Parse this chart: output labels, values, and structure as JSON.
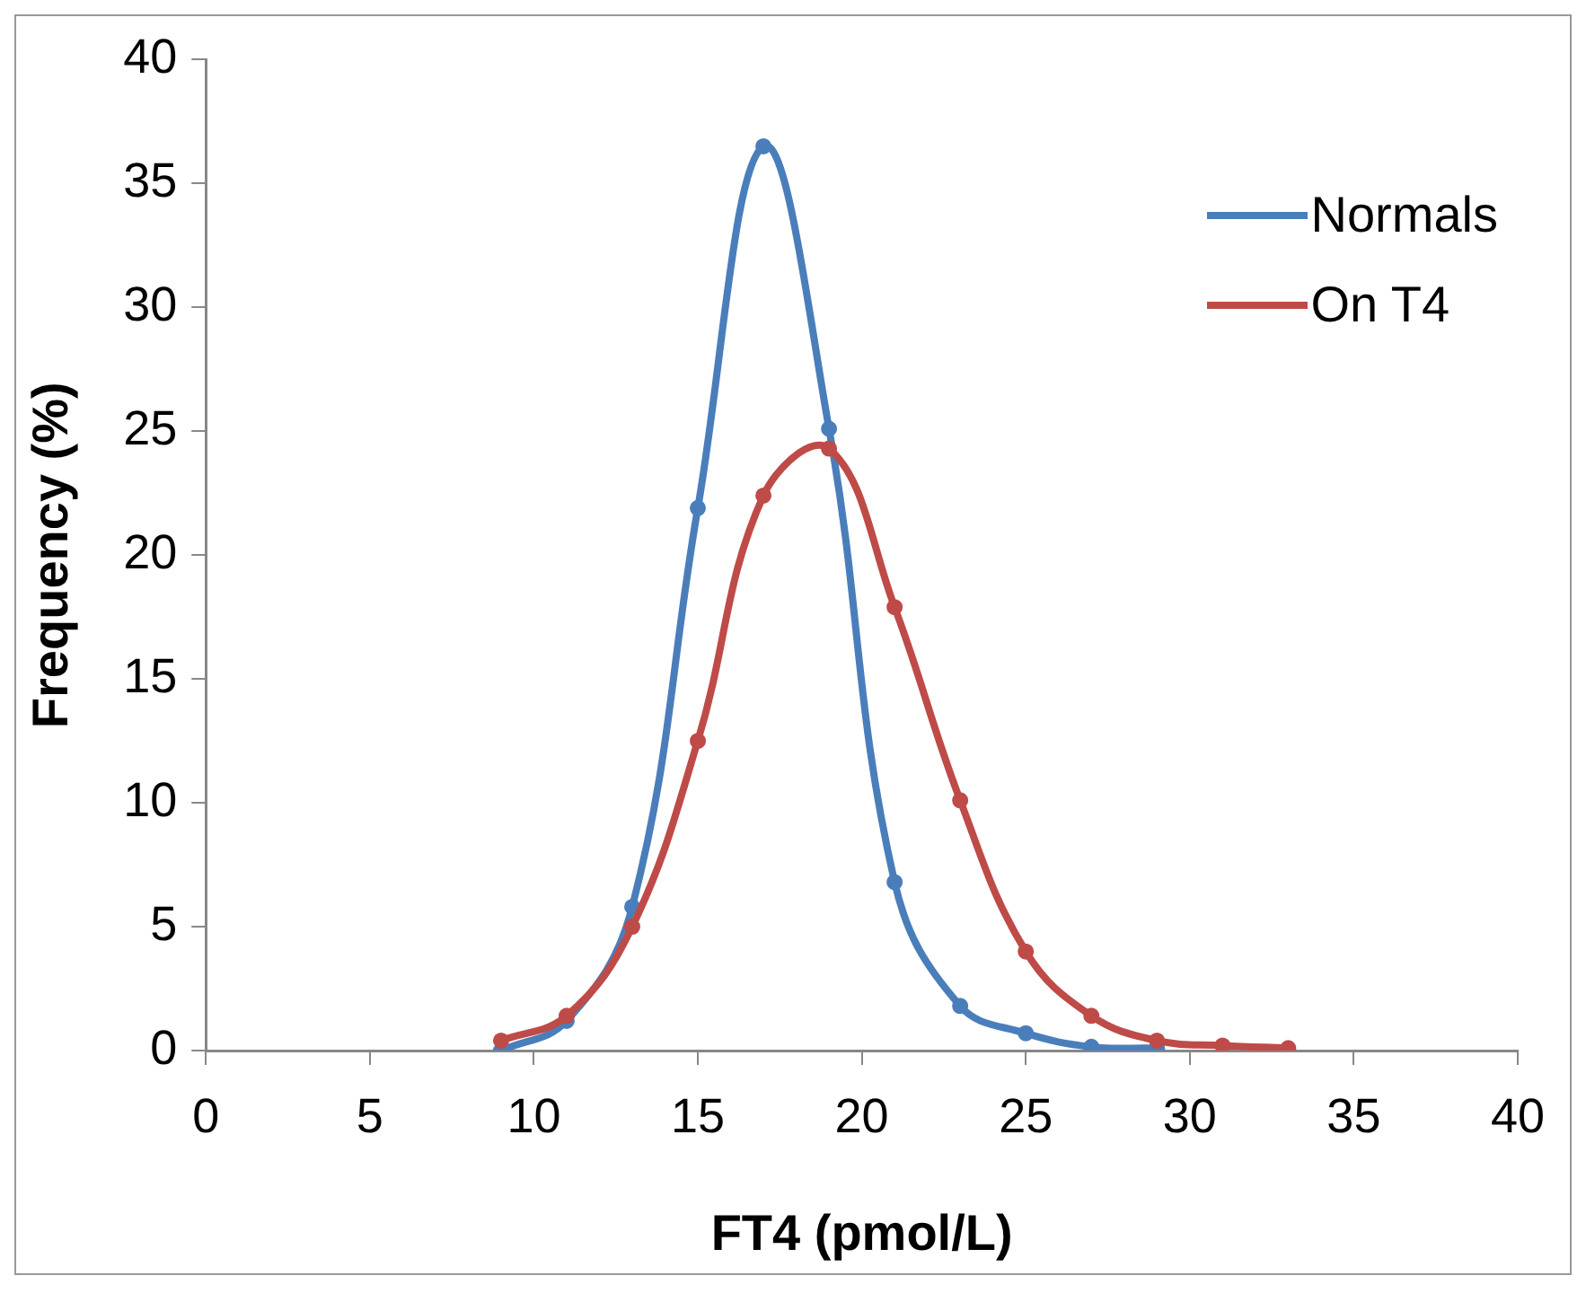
{
  "chart_data": {
    "type": "line",
    "xlabel": "FT4 (pmol/L)",
    "ylabel": "Frequency (%)",
    "xlim": [
      0,
      40
    ],
    "xticks": [
      0,
      5,
      10,
      15,
      20,
      25,
      30,
      35,
      40
    ],
    "ylim": [
      0,
      40
    ],
    "yticks": [
      0,
      5,
      10,
      15,
      20,
      25,
      30,
      35,
      40
    ],
    "grid": false,
    "legend": "top right",
    "marker": "circle",
    "line_style": "solid",
    "series": [
      {
        "name": "Normals",
        "color": "#4a7ebb",
        "x": [
          9,
          11,
          13,
          15,
          17,
          19,
          21,
          23,
          25,
          27,
          29
        ],
        "values": [
          0,
          1.2,
          5.8,
          21.9,
          36.5,
          25.1,
          6.8,
          1.8,
          0.7,
          0.15,
          0.1
        ]
      },
      {
        "name": "On T4",
        "color": "#be4b48",
        "x": [
          9,
          11,
          13,
          15,
          17,
          19,
          21,
          23,
          25,
          27,
          29,
          31,
          33
        ],
        "values": [
          0.4,
          1.4,
          5.0,
          12.5,
          22.4,
          24.3,
          17.9,
          10.1,
          4.0,
          1.4,
          0.4,
          0.2,
          0.1
        ]
      }
    ]
  }
}
